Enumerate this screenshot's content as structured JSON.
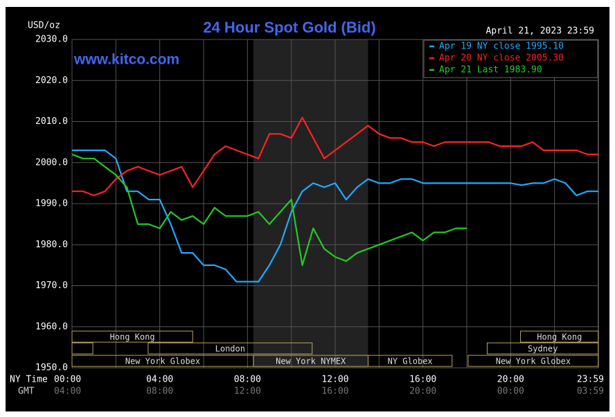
{
  "chart_data": {
    "type": "line",
    "title": "24 Hour Spot Gold (Bid)",
    "timestamp": "April 21, 2023 23:59",
    "watermark": "www.kitco.com",
    "y_unit": "USD/oz",
    "x_axis_label": "NY Time",
    "x2_axis_label": "GMT",
    "xlim": [
      0,
      24
    ],
    "ylim": [
      1950,
      2030
    ],
    "grid": true,
    "legend": "top-right",
    "shade_color": "#222222",
    "yticks": [
      {
        "value": 1950,
        "label": "1950.0"
      },
      {
        "value": 1960,
        "label": "1960.0"
      },
      {
        "value": 1970,
        "label": "1970.0"
      },
      {
        "value": 1980,
        "label": "1980.0"
      },
      {
        "value": 1990,
        "label": "1990.0"
      },
      {
        "value": 2000,
        "label": "2000.0"
      },
      {
        "value": 2010,
        "label": "2010.0"
      },
      {
        "value": 2020,
        "label": "2020.0"
      },
      {
        "value": 2030,
        "label": "2030.0"
      }
    ],
    "xticks": [
      {
        "value": 0,
        "label": "00:00"
      },
      {
        "value": 4,
        "label": "04:00"
      },
      {
        "value": 8,
        "label": "08:00"
      },
      {
        "value": 12,
        "label": "12:00"
      },
      {
        "value": 16,
        "label": "16:00"
      },
      {
        "value": 20,
        "label": "20:00"
      },
      {
        "value": 23.983,
        "label": "23:59"
      }
    ],
    "x2tick_labels": [
      "04:00",
      "08:00",
      "12:00",
      "16:00",
      "20:00",
      "00:00",
      "03:59"
    ],
    "xminor": [
      2,
      6,
      10,
      14,
      18,
      22
    ],
    "x": [
      0,
      0.5,
      1,
      1.5,
      2,
      2.5,
      3,
      3.5,
      4,
      4.5,
      5,
      5.5,
      6,
      6.5,
      7,
      7.5,
      8,
      8.5,
      9,
      9.5,
      10,
      10.5,
      11,
      11.5,
      12,
      12.5,
      13,
      13.5,
      14,
      14.5,
      15,
      15.5,
      16,
      16.5,
      17,
      17.5,
      18,
      18.5,
      19,
      19.5,
      20,
      20.5,
      21,
      21.5,
      22,
      22.5,
      23,
      23.5,
      24
    ],
    "series": [
      {
        "name": "Apr 19 NY close 1995.10",
        "color": "#22aaff",
        "values": [
          2003,
          2003,
          2003,
          2003,
          2001,
          1993,
          1993,
          1991,
          1991,
          1985,
          1978,
          1978,
          1975,
          1975,
          1974,
          1971,
          1971,
          1971,
          1975,
          1980,
          1988,
          1993,
          1995,
          1994,
          1995,
          1991,
          1994,
          1996,
          1995,
          1995,
          1996,
          1996,
          1995,
          1995,
          1995,
          1995,
          1995,
          1995,
          1995,
          1995,
          1995,
          1994.5,
          1995,
          1995,
          1996,
          1995,
          1992,
          1993,
          1993
        ]
      },
      {
        "name": "Apr 20 NY close 2005.30",
        "color": "#ff2222",
        "values": [
          1993,
          1993,
          1992,
          1993,
          1996,
          1998,
          1999,
          1998,
          1997,
          1998,
          1999,
          1994,
          1998,
          2002,
          2004,
          2003,
          2002,
          2001,
          2007,
          2007,
          2006,
          2011,
          2006,
          2001,
          2003,
          2005,
          2007,
          2009,
          2007,
          2006,
          2006,
          2005,
          2005,
          2004,
          2005,
          2005,
          2005,
          2005,
          2005,
          2004,
          2004,
          2004,
          2005,
          2003,
          2003,
          2003,
          2003,
          2002,
          2002
        ]
      },
      {
        "name": "Apr 21 Last 1983.90",
        "color": "#22cc22",
        "values": [
          2002,
          2001,
          2001,
          1999,
          1997,
          1994,
          1985,
          1985,
          1984,
          1988,
          1986,
          1987,
          1985,
          1989,
          1987,
          1987,
          1987,
          1988,
          1985,
          1988,
          1991,
          1975,
          1984,
          1979,
          1977,
          1976,
          1978,
          1979,
          1980,
          1981,
          1982,
          1983,
          1981,
          1983,
          1983,
          1984,
          1984,
          null,
          null,
          null,
          null,
          null,
          null,
          null,
          null,
          null,
          null,
          null,
          null
        ]
      }
    ],
    "sessions": [
      [
        {
          "label": "Hong Kong",
          "start": 0,
          "end": 5.5
        },
        {
          "label": "Hong Kong",
          "start": 20.45,
          "end": 24
        }
      ],
      [
        {
          "label": null,
          "start": 0,
          "end": 0.95
        },
        {
          "label": "London",
          "start": 3.47,
          "end": 10.95
        },
        {
          "label": "Sydney",
          "start": 18.93,
          "end": 24
        }
      ],
      [
        {
          "label": "New York Globex",
          "start": 0,
          "end": 8.27
        },
        {
          "label": "New York NYMEX",
          "start": 8.27,
          "end": 13.5,
          "highlight": true
        },
        {
          "label": "NY Globex",
          "start": 13.5,
          "end": 17.33
        },
        {
          "label": "New York Globex",
          "start": 18.06,
          "end": 24
        }
      ]
    ]
  }
}
